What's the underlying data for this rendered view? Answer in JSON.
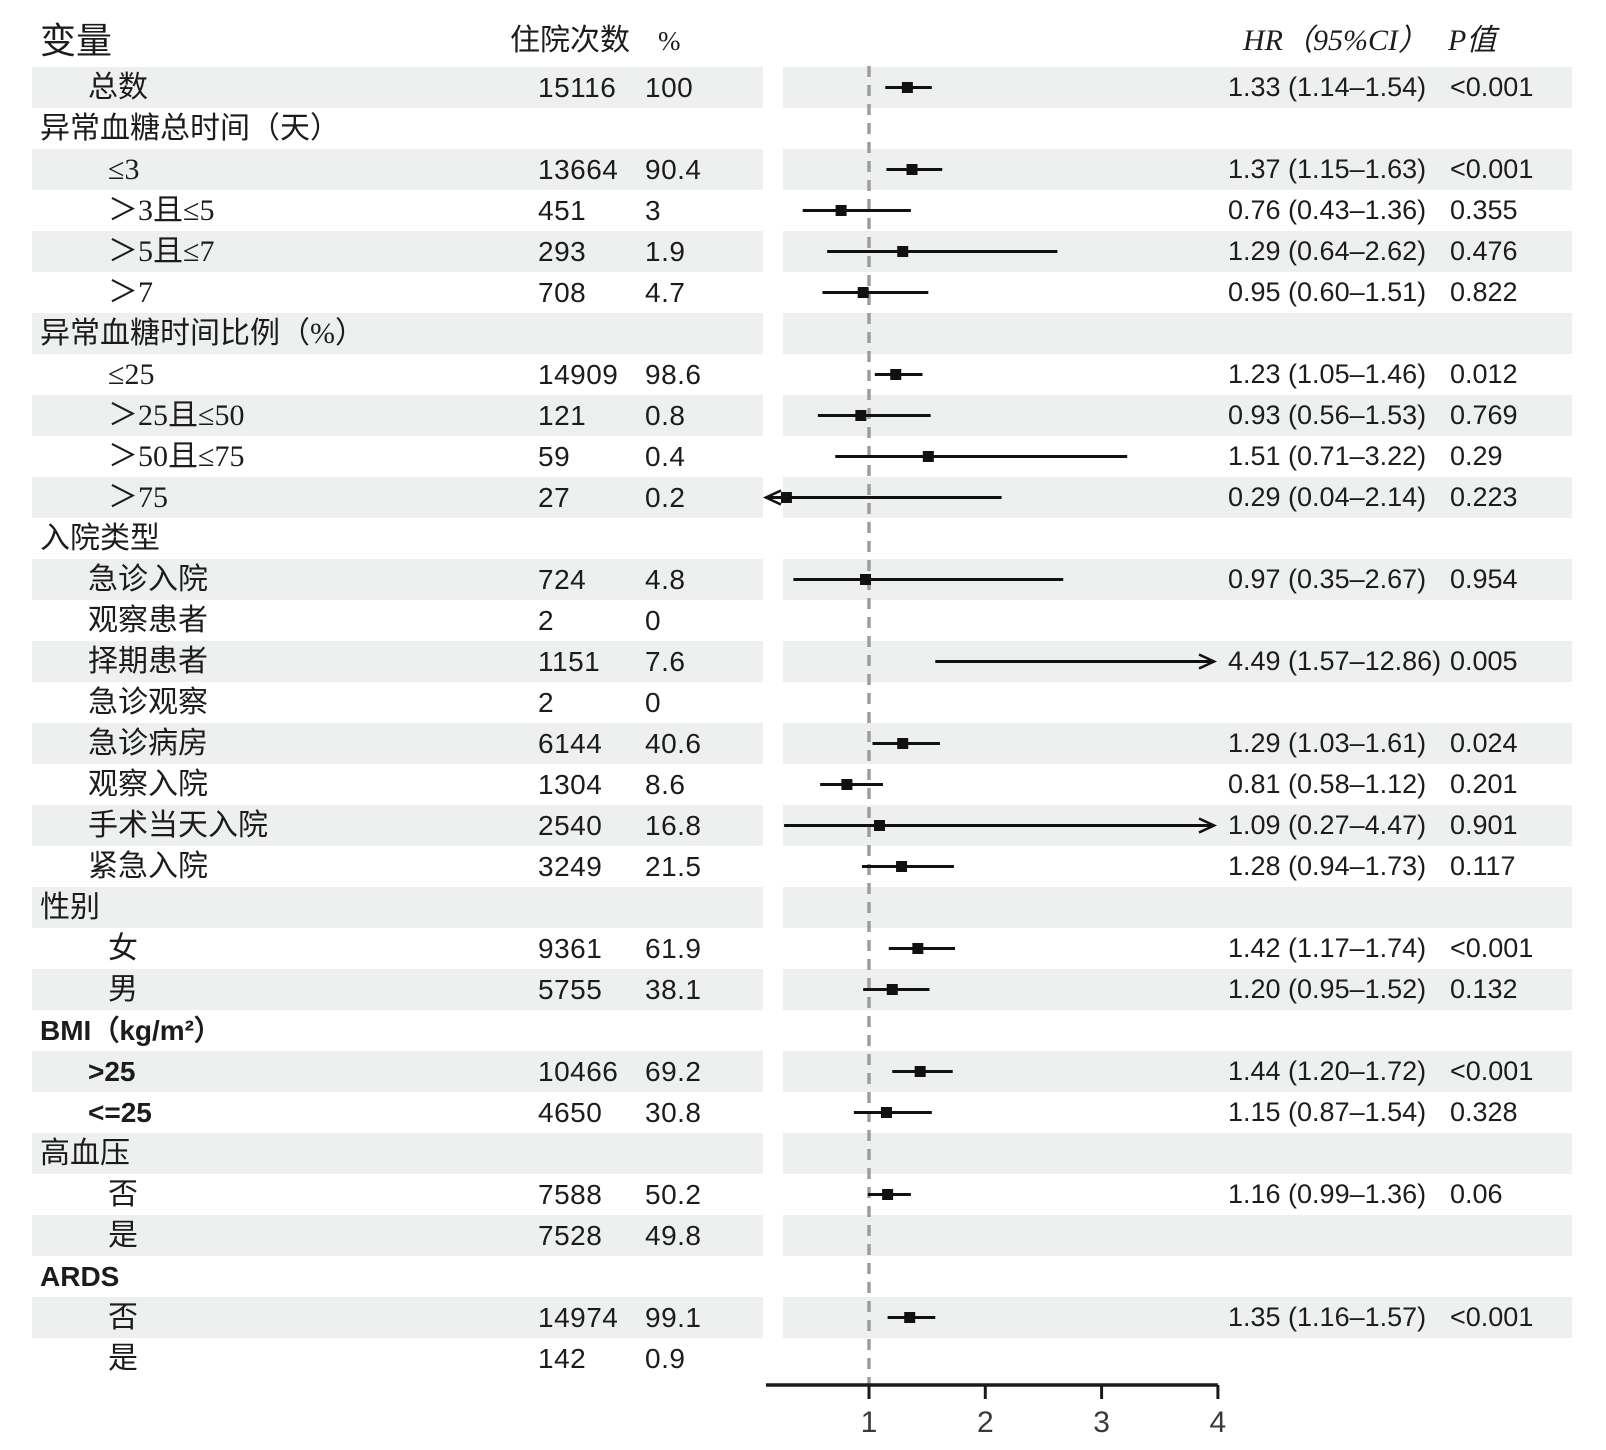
{
  "header": {
    "variable": "变量",
    "count": "住院次数",
    "percent": "%",
    "hr": "HR（95%CI）",
    "p": "P值"
  },
  "colors": {
    "shade": "#edf0ef",
    "text": "#1c1c1c",
    "marker": "#111111",
    "ci_line": "#111111",
    "reference_line": "#9d9d9d",
    "axis": "#1a1a1a"
  },
  "chart_data": {
    "type": "forest",
    "x_ticks": [
      1,
      2,
      3,
      4
    ],
    "x_tick_labels": [
      "1",
      "2",
      "3",
      "4"
    ],
    "x_range": [
      0.11,
      4.0
    ],
    "reference_line": 1,
    "legend_position": "none",
    "grid": false,
    "rows": [
      {
        "label": "总数",
        "level": "item",
        "count": "15116",
        "pct": "100",
        "est": 1.33,
        "lo": 1.14,
        "hi": 1.54,
        "hr": "1.33 (1.14–1.54)",
        "p": "<0.001",
        "shaded": true
      },
      {
        "label": "异常血糖总时间（天）",
        "level": "group",
        "count": "",
        "pct": "",
        "est": null,
        "lo": null,
        "hi": null,
        "hr": "",
        "p": "",
        "shaded": false
      },
      {
        "label": "≤3",
        "level": "item2",
        "count": "13664",
        "pct": "90.4",
        "est": 1.37,
        "lo": 1.15,
        "hi": 1.63,
        "hr": "1.37 (1.15–1.63)",
        "p": "<0.001",
        "shaded": true
      },
      {
        "label": "＞3且≤5",
        "level": "item2",
        "count": "451",
        "pct": "3",
        "est": 0.76,
        "lo": 0.43,
        "hi": 1.36,
        "hr": "0.76 (0.43–1.36)",
        "p": "0.355",
        "shaded": false
      },
      {
        "label": "＞5且≤7",
        "level": "item2",
        "count": "293",
        "pct": "1.9",
        "est": 1.29,
        "lo": 0.64,
        "hi": 2.62,
        "hr": "1.29 (0.64–2.62)",
        "p": "0.476",
        "shaded": true
      },
      {
        "label": "＞7",
        "level": "item2",
        "count": "708",
        "pct": "4.7",
        "est": 0.95,
        "lo": 0.6,
        "hi": 1.51,
        "hr": "0.95 (0.60–1.51)",
        "p": "0.822",
        "shaded": false
      },
      {
        "label": "异常血糖时间比例（%）",
        "level": "group",
        "count": "",
        "pct": "",
        "est": null,
        "lo": null,
        "hi": null,
        "hr": "",
        "p": "",
        "shaded": true
      },
      {
        "label": "≤25",
        "level": "item2",
        "count": "14909",
        "pct": "98.6",
        "est": 1.23,
        "lo": 1.05,
        "hi": 1.46,
        "hr": "1.23 (1.05–1.46)",
        "p": "0.012",
        "shaded": false
      },
      {
        "label": "＞25且≤50",
        "level": "item2",
        "count": "121",
        "pct": "0.8",
        "est": 0.93,
        "lo": 0.56,
        "hi": 1.53,
        "hr": "0.93 (0.56–1.53)",
        "p": "0.769",
        "shaded": true
      },
      {
        "label": "＞50且≤75",
        "level": "item2",
        "count": "59",
        "pct": "0.4",
        "est": 1.51,
        "lo": 0.71,
        "hi": 3.22,
        "hr": "1.51 (0.71–3.22)",
        "p": "0.29",
        "shaded": false
      },
      {
        "label": "＞75",
        "level": "item2",
        "count": "27",
        "pct": "0.2",
        "est": 0.29,
        "lo": 0.04,
        "hi": 2.14,
        "hr": "0.29 (0.04–2.14)",
        "p": "0.223",
        "shaded": true
      },
      {
        "label": "入院类型",
        "level": "group",
        "count": "",
        "pct": "",
        "est": null,
        "lo": null,
        "hi": null,
        "hr": "",
        "p": "",
        "shaded": false
      },
      {
        "label": "急诊入院",
        "level": "item",
        "count": "724",
        "pct": "4.8",
        "est": 0.97,
        "lo": 0.35,
        "hi": 2.67,
        "hr": "0.97 (0.35–2.67)",
        "p": "0.954",
        "shaded": true
      },
      {
        "label": "观察患者",
        "level": "item",
        "count": "2",
        "pct": "0",
        "est": null,
        "lo": null,
        "hi": null,
        "hr": "",
        "p": "",
        "shaded": false
      },
      {
        "label": "择期患者",
        "level": "item",
        "count": "1151",
        "pct": "7.6",
        "est": 4.49,
        "lo": 1.57,
        "hi": 12.86,
        "hr": "4.49 (1.57–12.86)",
        "p": "0.005",
        "shaded": true
      },
      {
        "label": "急诊观察",
        "level": "item",
        "count": "2",
        "pct": "0",
        "est": null,
        "lo": null,
        "hi": null,
        "hr": "",
        "p": "",
        "shaded": false
      },
      {
        "label": "急诊病房",
        "level": "item",
        "count": "6144",
        "pct": "40.6",
        "est": 1.29,
        "lo": 1.03,
        "hi": 1.61,
        "hr": "1.29 (1.03–1.61)",
        "p": "0.024",
        "shaded": true
      },
      {
        "label": "观察入院",
        "level": "item",
        "count": "1304",
        "pct": "8.6",
        "est": 0.81,
        "lo": 0.58,
        "hi": 1.12,
        "hr": "0.81 (0.58–1.12)",
        "p": "0.201",
        "shaded": false
      },
      {
        "label": "手术当天入院",
        "level": "item",
        "count": "2540",
        "pct": "16.8",
        "est": 1.09,
        "lo": 0.27,
        "hi": 4.47,
        "hr": "1.09 (0.27–4.47)",
        "p": "0.901",
        "shaded": true
      },
      {
        "label": "紧急入院",
        "level": "item",
        "count": "3249",
        "pct": "21.5",
        "est": 1.28,
        "lo": 0.94,
        "hi": 1.73,
        "hr": "1.28 (0.94–1.73)",
        "p": "0.117",
        "shaded": false
      },
      {
        "label": "性别",
        "level": "group",
        "count": "",
        "pct": "",
        "est": null,
        "lo": null,
        "hi": null,
        "hr": "",
        "p": "",
        "shaded": true
      },
      {
        "label": "女",
        "level": "item2",
        "count": "9361",
        "pct": "61.9",
        "est": 1.42,
        "lo": 1.17,
        "hi": 1.74,
        "hr": "1.42 (1.17–1.74)",
        "p": "<0.001",
        "shaded": false
      },
      {
        "label": "男",
        "level": "item2",
        "count": "5755",
        "pct": "38.1",
        "est": 1.2,
        "lo": 0.95,
        "hi": 1.52,
        "hr": "1.20 (0.95–1.52)",
        "p": "0.132",
        "shaded": true
      },
      {
        "label": "BMI（kg/m²）",
        "level": "group",
        "count": "",
        "pct": "",
        "est": null,
        "lo": null,
        "hi": null,
        "hr": "",
        "p": "",
        "shaded": false
      },
      {
        "label": ">25",
        "level": "item",
        "count": "10466",
        "pct": "69.2",
        "est": 1.44,
        "lo": 1.2,
        "hi": 1.72,
        "hr": "1.44 (1.20–1.72)",
        "p": "<0.001",
        "shaded": true
      },
      {
        "label": "<=25",
        "level": "item",
        "count": "4650",
        "pct": "30.8",
        "est": 1.15,
        "lo": 0.87,
        "hi": 1.54,
        "hr": "1.15 (0.87–1.54)",
        "p": "0.328",
        "shaded": false
      },
      {
        "label": "高血压",
        "level": "group",
        "count": "",
        "pct": "",
        "est": null,
        "lo": null,
        "hi": null,
        "hr": "",
        "p": "",
        "shaded": true
      },
      {
        "label": "否",
        "level": "item2",
        "count": "7588",
        "pct": "50.2",
        "est": 1.16,
        "lo": 0.99,
        "hi": 1.36,
        "hr": "1.16 (0.99–1.36)",
        "p": "0.06",
        "shaded": false
      },
      {
        "label": "是",
        "level": "item2",
        "count": "7528",
        "pct": "49.8",
        "est": null,
        "lo": null,
        "hi": null,
        "hr": "",
        "p": "",
        "shaded": true
      },
      {
        "label": "ARDS",
        "level": "group",
        "count": "",
        "pct": "",
        "est": null,
        "lo": null,
        "hi": null,
        "hr": "",
        "p": "",
        "shaded": false
      },
      {
        "label": "否",
        "level": "item2",
        "count": "14974",
        "pct": "99.1",
        "est": 1.35,
        "lo": 1.16,
        "hi": 1.57,
        "hr": "1.35 (1.16–1.57)",
        "p": "<0.001",
        "shaded": true
      },
      {
        "label": "是",
        "level": "item2",
        "count": "142",
        "pct": "0.9",
        "est": null,
        "lo": null,
        "hi": null,
        "hr": "",
        "p": "",
        "shaded": false
      }
    ]
  }
}
